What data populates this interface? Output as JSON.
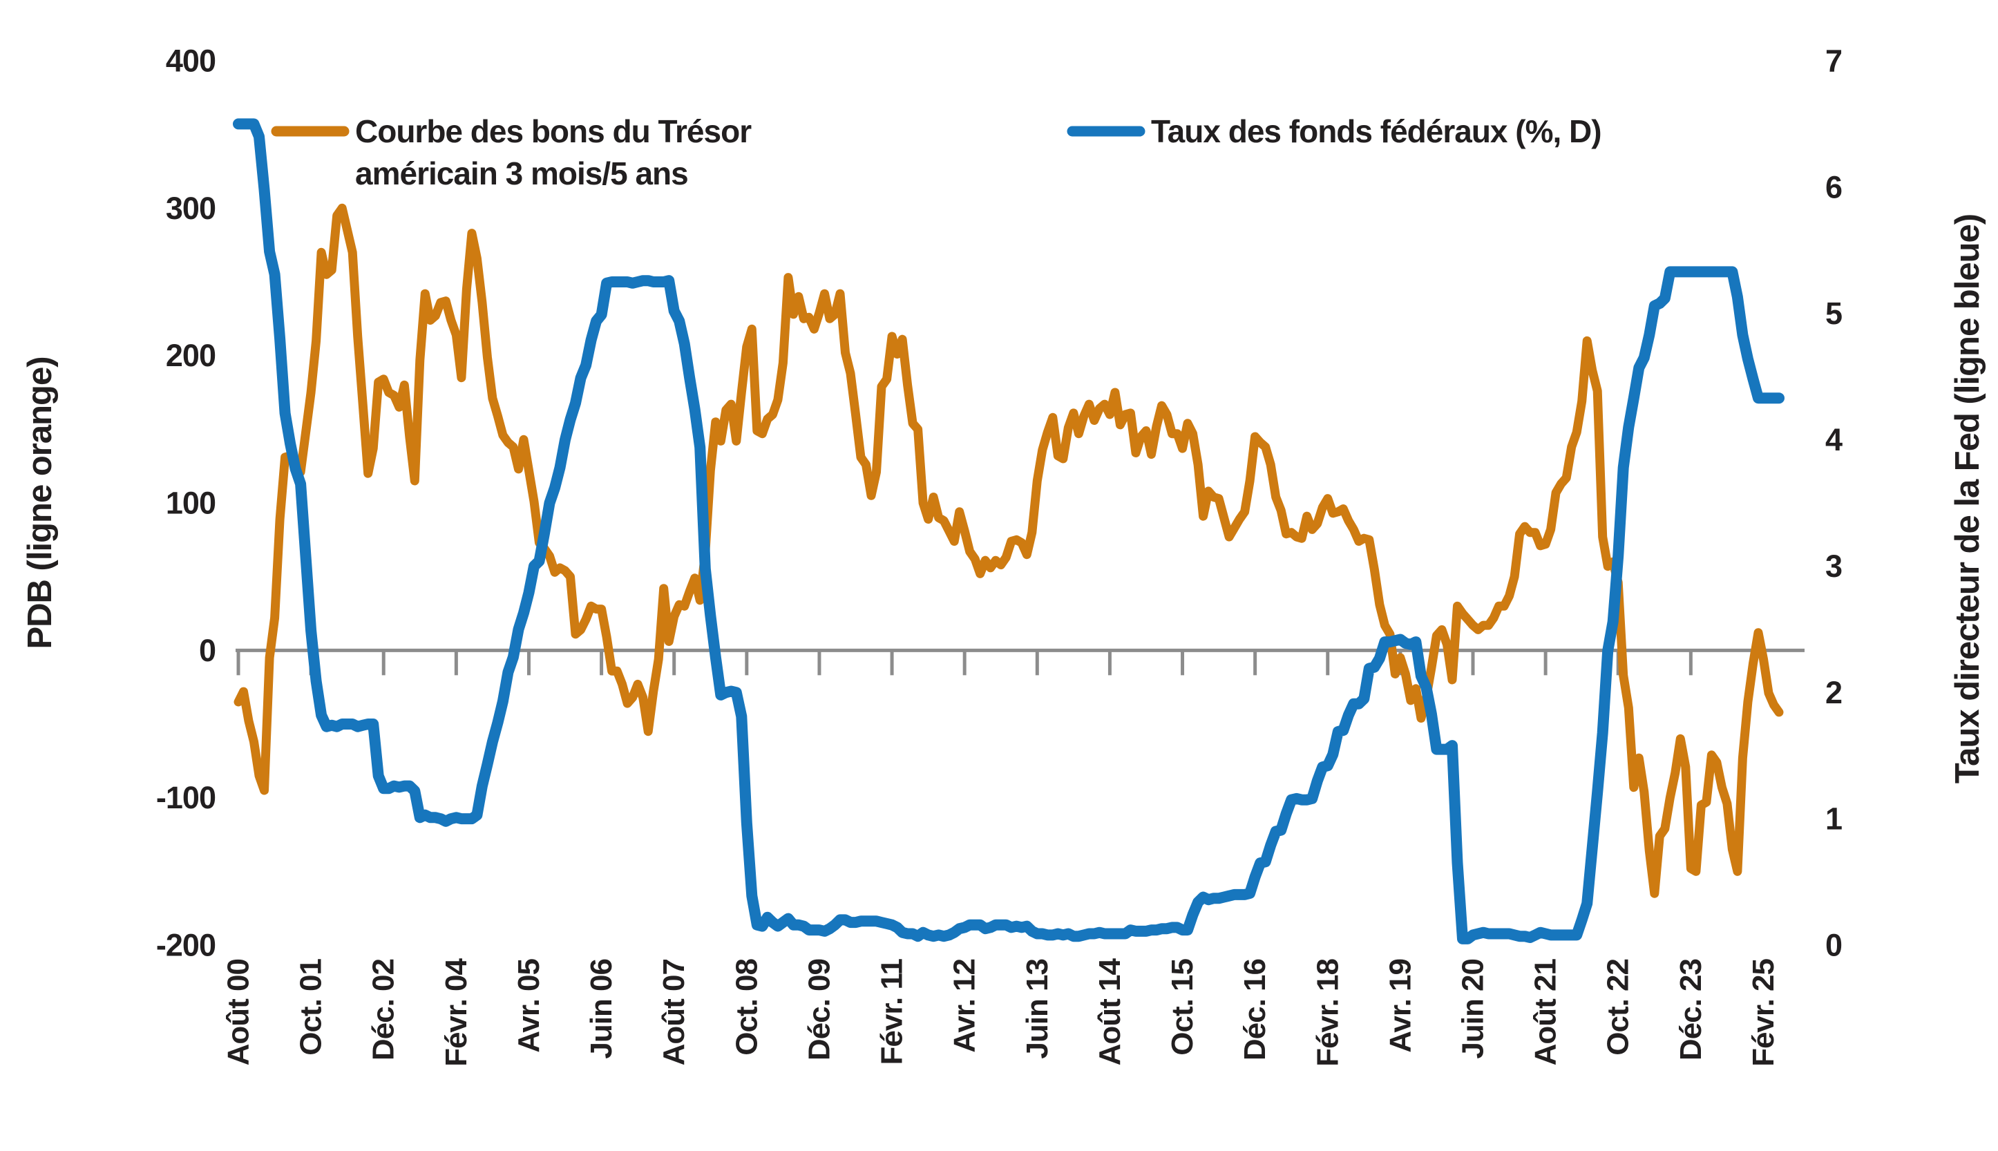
{
  "colors": {
    "orange_series": "#CE7B11",
    "blue_series": "#1776BD",
    "axis_gray": "#8C8C8C",
    "text": "#221f20",
    "background": "#FFFFFF"
  },
  "legend": {
    "orange_line1": "Courbe des bons du Trésor",
    "orange_line2": "américain 3 mois/5 ans",
    "blue": "Taux des fonds fédéraux (%, D)"
  },
  "chart_data": {
    "type": "line",
    "title": "",
    "grid": "zero-line-only",
    "legend_position": "top",
    "x_frequency": "monthly",
    "x_start": "Août 2000",
    "x_end": "Mai 2025",
    "x_tick_interval_points": 14,
    "x_tick_labels": [
      "Août 00",
      "Oct. 01",
      "Déc. 02",
      "Févr. 04",
      "Avr. 05",
      "Juin 06",
      "Août 07",
      "Oct. 08",
      "Déc. 09",
      "Févr. 11",
      "Avr. 12",
      "Juin 13",
      "Août 14",
      "Oct. 15",
      "Déc. 16",
      "Févr. 18",
      "Avr. 19",
      "Juin 20",
      "Août 21",
      "Oct. 22",
      "Déc. 23",
      "Févr. 25"
    ],
    "left_axis": {
      "label": "PDB (ligne orange)",
      "min": -200,
      "max": 400,
      "ticks": [
        400,
        300,
        200,
        100,
        0,
        -100,
        -200
      ]
    },
    "right_axis": {
      "label": "Taux directeur de la Fed (ligne bleue)",
      "min": 0,
      "max": 7,
      "ticks": [
        7,
        6,
        5,
        4,
        3,
        2,
        1,
        0
      ]
    },
    "series": [
      {
        "name": "Courbe des bons du Trésor américain 3 mois/5 ans",
        "axis": "left",
        "unit": "points de base",
        "color": "#CE7B11",
        "values": [
          -35,
          -28,
          -48,
          -62,
          -85,
          -95,
          -5,
          22,
          89,
          131,
          132,
          125,
          121,
          148,
          175,
          210,
          270,
          255,
          258,
          295,
          300,
          285,
          270,
          213,
          167,
          120,
          137,
          182,
          184,
          175,
          173,
          165,
          180,
          145,
          115,
          197,
          242,
          224,
          227,
          236,
          237,
          224,
          214,
          185,
          245,
          283,
          266,
          236,
          199,
          171,
          159,
          146,
          141,
          138,
          123,
          143,
          122,
          101,
          73,
          69,
          64,
          53,
          56,
          54,
          50,
          11,
          14,
          21,
          30,
          28,
          28,
          9,
          -14,
          -14,
          -23,
          -36,
          -32,
          -23,
          -32,
          -55,
          -28,
          -6,
          42,
          6,
          23,
          31,
          30,
          40,
          49,
          34,
          66,
          122,
          155,
          142,
          163,
          167,
          142,
          175,
          206,
          218,
          149,
          147,
          157,
          160,
          170,
          195,
          253,
          228,
          240,
          225,
          226,
          218,
          229,
          242,
          225,
          228,
          242,
          202,
          188,
          160,
          131,
          126,
          105,
          121,
          179,
          184,
          213,
          201,
          211,
          180,
          154,
          150,
          100,
          89,
          104,
          90,
          88,
          81,
          74,
          94,
          81,
          67,
          62,
          52,
          61,
          56,
          61,
          58,
          63,
          74,
          75,
          73,
          65,
          80,
          115,
          136,
          148,
          158,
          132,
          130,
          151,
          161,
          147,
          159,
          167,
          156,
          164,
          167,
          160,
          175,
          153,
          160,
          161,
          134,
          145,
          149,
          133,
          152,
          166,
          160,
          147,
          147,
          137,
          154,
          147,
          126,
          91,
          108,
          104,
          103,
          90,
          77,
          83,
          89,
          94,
          115,
          145,
          141,
          138,
          126,
          104,
          95,
          79,
          80,
          77,
          76,
          91,
          82,
          86,
          97,
          103,
          93,
          94,
          96,
          88,
          82,
          74,
          76,
          75,
          55,
          31,
          17,
          11,
          -16,
          -5,
          -16,
          -34,
          -26,
          -46,
          -32,
          -12,
          10,
          14,
          4,
          -20,
          30,
          25,
          21,
          17,
          14,
          17,
          17,
          22,
          30,
          30,
          37,
          50,
          79,
          84,
          80,
          80,
          71,
          72,
          82,
          107,
          113,
          117,
          138,
          148,
          169,
          210,
          190,
          176,
          77,
          57,
          60,
          46,
          -17,
          -39,
          -93,
          -73,
          -96,
          -136,
          -165,
          -126,
          -121,
          -100,
          -83,
          -60,
          -79,
          -148,
          -150,
          -105,
          -103,
          -71,
          -76,
          -93,
          -104,
          -135,
          -150,
          -73,
          -35,
          -9,
          12,
          -6,
          -29,
          -37,
          -42
        ]
      },
      {
        "name": "Taux des fonds fédéraux (%, D)",
        "axis": "right",
        "unit": "%",
        "color": "#1776BD",
        "values": [
          6.5,
          6.5,
          6.5,
          6.5,
          6.4,
          5.98,
          5.49,
          5.31,
          4.8,
          4.21,
          3.97,
          3.77,
          3.65,
          3.07,
          2.49,
          2.09,
          1.82,
          1.73,
          1.74,
          1.73,
          1.75,
          1.75,
          1.75,
          1.73,
          1.74,
          1.75,
          1.75,
          1.34,
          1.24,
          1.24,
          1.26,
          1.25,
          1.26,
          1.26,
          1.22,
          1.01,
          1.03,
          1.01,
          1.01,
          1.0,
          0.98,
          1.0,
          1.01,
          1.0,
          1.0,
          1.0,
          1.03,
          1.26,
          1.43,
          1.61,
          1.76,
          1.93,
          2.16,
          2.28,
          2.5,
          2.63,
          2.79,
          3.0,
          3.04,
          3.26,
          3.5,
          3.62,
          3.78,
          4.0,
          4.16,
          4.29,
          4.49,
          4.59,
          4.79,
          4.94,
          4.99,
          5.24,
          5.25,
          5.25,
          5.25,
          5.25,
          5.24,
          5.25,
          5.26,
          5.26,
          5.25,
          5.25,
          5.25,
          5.26,
          5.02,
          4.94,
          4.76,
          4.49,
          4.24,
          3.94,
          2.98,
          2.61,
          2.28,
          1.98,
          2.0,
          2.01,
          2.0,
          1.81,
          0.97,
          0.39,
          0.16,
          0.15,
          0.22,
          0.18,
          0.15,
          0.18,
          0.21,
          0.16,
          0.16,
          0.15,
          0.12,
          0.12,
          0.12,
          0.11,
          0.13,
          0.16,
          0.2,
          0.2,
          0.18,
          0.18,
          0.19,
          0.19,
          0.19,
          0.19,
          0.18,
          0.17,
          0.16,
          0.14,
          0.1,
          0.09,
          0.09,
          0.07,
          0.1,
          0.08,
          0.07,
          0.08,
          0.07,
          0.08,
          0.1,
          0.13,
          0.14,
          0.16,
          0.16,
          0.16,
          0.13,
          0.14,
          0.16,
          0.16,
          0.16,
          0.14,
          0.15,
          0.14,
          0.15,
          0.11,
          0.09,
          0.09,
          0.08,
          0.08,
          0.09,
          0.08,
          0.09,
          0.07,
          0.07,
          0.08,
          0.09,
          0.09,
          0.1,
          0.09,
          0.09,
          0.09,
          0.09,
          0.09,
          0.12,
          0.11,
          0.11,
          0.11,
          0.12,
          0.12,
          0.13,
          0.13,
          0.14,
          0.14,
          0.12,
          0.12,
          0.24,
          0.34,
          0.38,
          0.36,
          0.37,
          0.37,
          0.38,
          0.39,
          0.4,
          0.4,
          0.4,
          0.41,
          0.54,
          0.65,
          0.66,
          0.79,
          0.9,
          0.91,
          1.04,
          1.15,
          1.16,
          1.15,
          1.15,
          1.16,
          1.3,
          1.41,
          1.42,
          1.51,
          1.69,
          1.7,
          1.82,
          1.91,
          1.91,
          1.95,
          2.19,
          2.2,
          2.27,
          2.4,
          2.4,
          2.41,
          2.42,
          2.39,
          2.38,
          2.4,
          2.13,
          2.04,
          1.83,
          1.55,
          1.55,
          1.55,
          1.58,
          0.65,
          0.05,
          0.05,
          0.08,
          0.09,
          0.1,
          0.09,
          0.09,
          0.09,
          0.09,
          0.09,
          0.08,
          0.07,
          0.07,
          0.06,
          0.08,
          0.1,
          0.09,
          0.08,
          0.08,
          0.08,
          0.08,
          0.08,
          0.08,
          0.2,
          0.33,
          0.77,
          1.21,
          1.68,
          2.33,
          2.56,
          3.08,
          3.78,
          4.1,
          4.33,
          4.57,
          4.65,
          4.83,
          5.06,
          5.08,
          5.12,
          5.33,
          5.33,
          5.33,
          5.33,
          5.33,
          5.33,
          5.33,
          5.33,
          5.33,
          5.33,
          5.33,
          5.33,
          5.33,
          5.13,
          4.83,
          4.64,
          4.48,
          4.33,
          4.33,
          4.33,
          4.33,
          4.33
        ]
      }
    ]
  }
}
